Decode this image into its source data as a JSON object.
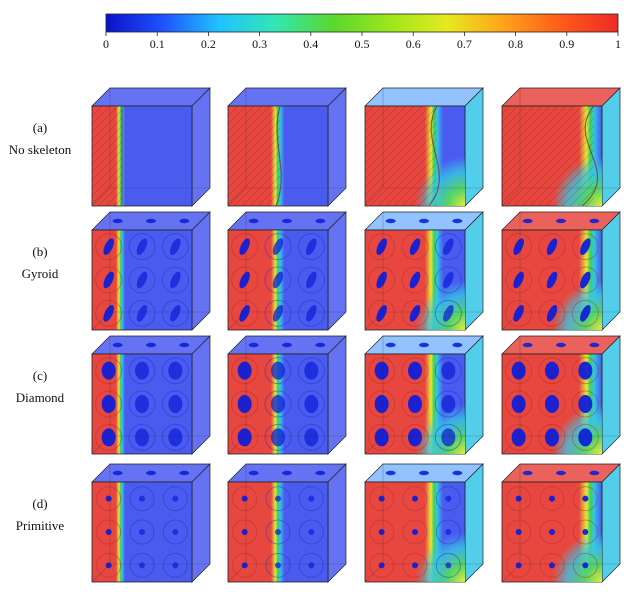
{
  "colorbar": {
    "ticks": [
      "0",
      "0.1",
      "0.2",
      "0.3",
      "0.4",
      "0.5",
      "0.6",
      "0.7",
      "0.8",
      "0.9",
      "1"
    ],
    "colors": [
      "#0a12c9",
      "#1f52ff",
      "#1fc4ff",
      "#34e6b0",
      "#5ad82d",
      "#9ee61c",
      "#e6ea1e",
      "#ffa21a",
      "#ff5a1a",
      "#ee2a24"
    ]
  },
  "rows": [
    {
      "id": "a",
      "label": "(a)",
      "name": "No skeleton",
      "type": "none"
    },
    {
      "id": "b",
      "label": "(b)",
      "name": "Gyroid",
      "type": "gyroid"
    },
    {
      "id": "c",
      "label": "(c)",
      "name": "Diamond",
      "type": "diamond"
    },
    {
      "id": "d",
      "label": "(d)",
      "name": "Primitive",
      "type": "primitive"
    }
  ],
  "colors": {
    "red": "#e8473f",
    "red_dark": "#a8302d",
    "blue": "#4a5bf0",
    "blue_dark": "#2131b8",
    "yellow": "#e4e83a",
    "green": "#3fd05a",
    "cyan": "#34c6e6",
    "hole": "#1020d8"
  }
}
